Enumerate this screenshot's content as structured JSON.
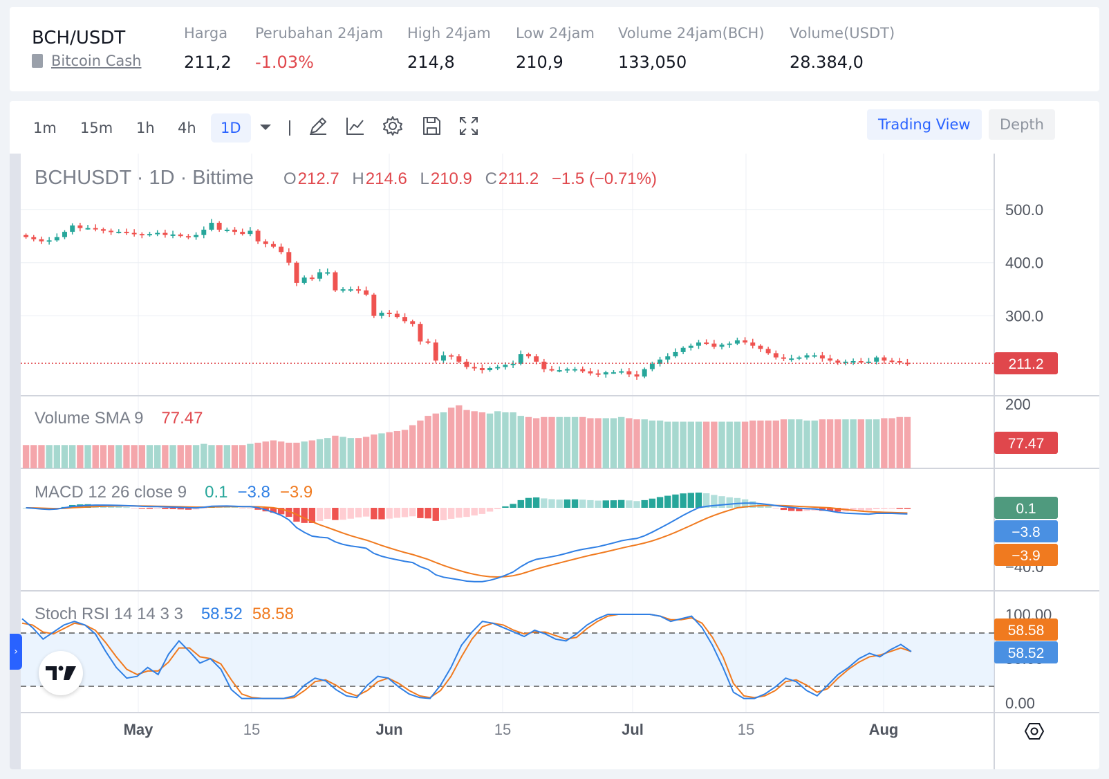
{
  "ticker": {
    "pair": "BCH/USDT",
    "coin_name": "Bitcoin Cash",
    "stats": [
      {
        "label": "Harga",
        "value": "211,2",
        "negative": false
      },
      {
        "label": "Perubahan 24jam",
        "value": "-1.03%",
        "negative": true
      },
      {
        "label": "High 24jam",
        "value": "214,8",
        "negative": false
      },
      {
        "label": "Low 24jam",
        "value": "210,9",
        "negative": false
      },
      {
        "label": "Volume 24jam(BCH)",
        "value": "133,050",
        "negative": false
      },
      {
        "label": "Volume(USDT)",
        "value": "28.384,0",
        "negative": false
      }
    ]
  },
  "toolbar": {
    "timeframes": [
      "1m",
      "15m",
      "1h",
      "4h",
      "1D"
    ],
    "active_timeframe": "1D",
    "icons": [
      "chevron-down-icon",
      "pencil-icon",
      "indicator-icon",
      "gear-icon",
      "save-icon",
      "fullscreen-icon"
    ],
    "view_trading": "Trading View",
    "view_depth": "Depth"
  },
  "colors": {
    "up": "#26a69a",
    "down": "#ef5350",
    "up_volume": "#a6d8cf",
    "down_volume": "#f4a6ab",
    "macd_line": "#2f7fe4",
    "signal_line": "#f07a1f",
    "stoch_k": "#2f7fe4",
    "stoch_d": "#f07a1f",
    "grid": "#eceff4",
    "accent": "#2962ff"
  },
  "legend": {
    "symbol": "BCHUSDT",
    "interval": "1D",
    "exchange": "Bittime",
    "o_label": "O",
    "o": "212.7",
    "h_label": "H",
    "h": "214.6",
    "l_label": "L",
    "l": "210.9",
    "c_label": "C",
    "c": "211.2",
    "change": "−1.5 (−0.71%)"
  },
  "chart_data": [
    {
      "type": "candlestick",
      "title": "BCHUSDT · 1D · Bittime",
      "x_ticks": [
        "May",
        "15",
        "Jun",
        "15",
        "Jul",
        "15",
        "Aug"
      ],
      "y_ticks": [
        "500.0",
        "400.0",
        "300.0"
      ],
      "ylim": [
        150,
        540
      ],
      "last_price_label": "211.2",
      "close": [
        448,
        444,
        440,
        442,
        448,
        458,
        470,
        465,
        465,
        463,
        460,
        458,
        458,
        456,
        454,
        452,
        454,
        456,
        452,
        453,
        450,
        448,
        452,
        462,
        475,
        462,
        462,
        458,
        454,
        460,
        440,
        435,
        430,
        420,
        400,
        362,
        372,
        370,
        382,
        382,
        348,
        350,
        350,
        348,
        340,
        300,
        306,
        304,
        298,
        290,
        285,
        252,
        250,
        216,
        226,
        224,
        214,
        204,
        202,
        198,
        202,
        204,
        208,
        210,
        228,
        224,
        214,
        200,
        198,
        198,
        200,
        200,
        196,
        192,
        190,
        194,
        194,
        196,
        190,
        186,
        200,
        210,
        218,
        224,
        232,
        240,
        244,
        250,
        248,
        242,
        246,
        248,
        254,
        250,
        244,
        238,
        230,
        222,
        220,
        220,
        222,
        226,
        226,
        220,
        216,
        212,
        214,
        215,
        214,
        214,
        222,
        216,
        215,
        212,
        211
      ],
      "series_extra": [
        {
          "name": "Volume SMA 9",
          "value": "77.47",
          "y_ticks": [
            "200"
          ],
          "volume": [
            40,
            40,
            40,
            40,
            40,
            40,
            40,
            40,
            40,
            40,
            40,
            40,
            40,
            40,
            40,
            40,
            40,
            40,
            40,
            40,
            40,
            40,
            40,
            42,
            40,
            40,
            40,
            40,
            40,
            42,
            44,
            46,
            48,
            46,
            44,
            44,
            46,
            48,
            50,
            52,
            56,
            54,
            52,
            52,
            54,
            58,
            60,
            62,
            64,
            66,
            74,
            82,
            90,
            94,
            96,
            104,
            108,
            100,
            98,
            96,
            94,
            98,
            96,
            96,
            90,
            88,
            86,
            88,
            88,
            88,
            88,
            88,
            88,
            86,
            86,
            86,
            86,
            88,
            86,
            84,
            84,
            82,
            82,
            80,
            80,
            80,
            80,
            80,
            80,
            80,
            80,
            80,
            80,
            80,
            82,
            82,
            82,
            82,
            84,
            84,
            84,
            82,
            82,
            84,
            84,
            84,
            84,
            84,
            84,
            84,
            84,
            86,
            86,
            88,
            88,
            88,
            86,
            82,
            80,
            80
          ]
        },
        {
          "name": "MACD 12 26 close 9",
          "macd_value": "0.1",
          "macd_line_value": "−3.8",
          "signal_value": "−3.9",
          "y_ticks": [
            "−40.0"
          ]
        },
        {
          "name": "Stoch RSI 14 14 3 3",
          "k_value": "58.52",
          "d_value": "58.58",
          "y_ticks": [
            "100.00",
            "50.00",
            "0.00"
          ],
          "bands": [
            80,
            20
          ],
          "k": [
            95,
            85,
            72,
            80,
            88,
            92,
            88,
            78,
            58,
            40,
            28,
            30,
            40,
            32,
            55,
            70,
            58,
            45,
            50,
            38,
            15,
            5,
            5,
            5,
            5,
            5,
            8,
            20,
            28,
            25,
            15,
            8,
            6,
            20,
            30,
            28,
            18,
            10,
            6,
            5,
            20,
            40,
            65,
            80,
            92,
            90,
            85,
            80,
            75,
            82,
            78,
            72,
            70,
            78,
            88,
            95,
            100,
            100,
            100,
            100,
            100,
            98,
            92,
            95,
            98,
            85,
            65,
            40,
            12,
            5,
            5,
            10,
            18,
            28,
            24,
            14,
            8,
            20,
            32,
            40,
            50,
            56,
            52,
            60,
            66,
            58
          ],
          "d": [
            90,
            88,
            80,
            78,
            84,
            90,
            88,
            82,
            68,
            52,
            38,
            32,
            36,
            36,
            46,
            62,
            62,
            52,
            50,
            44,
            26,
            10,
            6,
            5,
            5,
            5,
            6,
            14,
            24,
            26,
            20,
            12,
            8,
            14,
            24,
            28,
            22,
            14,
            8,
            6,
            14,
            30,
            52,
            72,
            86,
            90,
            88,
            82,
            78,
            80,
            80,
            76,
            72,
            74,
            84,
            92,
            98,
            100,
            100,
            100,
            100,
            98,
            94,
            94,
            96,
            90,
            74,
            52,
            22,
            8,
            6,
            8,
            14,
            24,
            26,
            20,
            12,
            16,
            28,
            38,
            46,
            52,
            54,
            58,
            62,
            58
          ]
        }
      ]
    }
  ]
}
